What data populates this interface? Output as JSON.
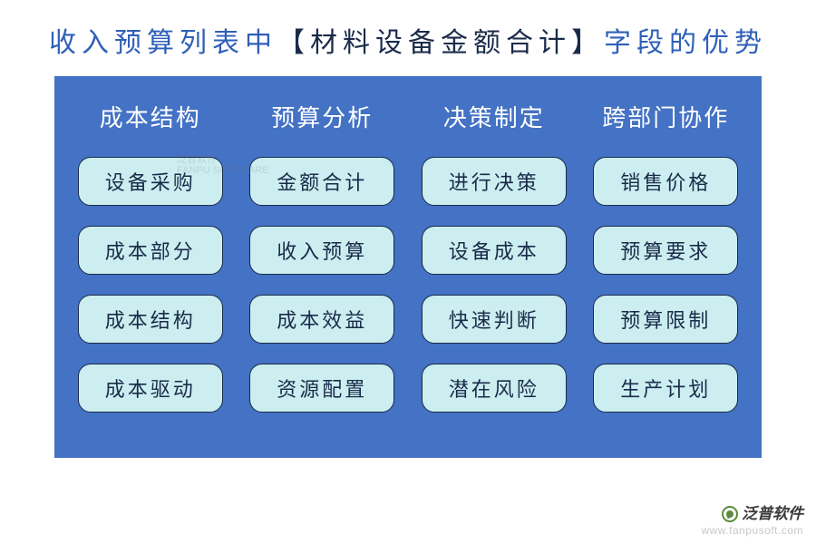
{
  "title": {
    "part1": "收入预算列表中",
    "part2": "【材料设备金额合计】",
    "part3": "字段的优势",
    "color_blue": "#2e5fb8",
    "color_dark": "#1a2b4a",
    "fontsize": 30
  },
  "panel": {
    "background_color": "#4472c4",
    "pill_bg_color": "#cceef0",
    "pill_border_color": "#1a2b4a",
    "pill_text_color": "#1a2b4a",
    "header_text_color": "#ffffff",
    "border_radius": 14,
    "columns": [
      {
        "header": "成本结构",
        "items": [
          "设备采购",
          "成本部分",
          "成本结构",
          "成本驱动"
        ]
      },
      {
        "header": "预算分析",
        "items": [
          "金额合计",
          "收入预算",
          "成本效益",
          "资源配置"
        ]
      },
      {
        "header": "决策制定",
        "items": [
          "进行决策",
          "设备成本",
          "快速判断",
          "潜在风险"
        ]
      },
      {
        "header": "跨部门协作",
        "items": [
          "销售价格",
          "预算要求",
          "预算限制",
          "生产计划"
        ]
      }
    ]
  },
  "footer": {
    "brand": "泛普软件",
    "url": "www.fanpusoft.com",
    "brand_color": "#3a3a3a",
    "url_color": "#c9c9c9",
    "icon_color": "#5c8a3a"
  },
  "watermark": {
    "line1": "泛普软件",
    "line2": "FANPU SOFTWARE"
  }
}
